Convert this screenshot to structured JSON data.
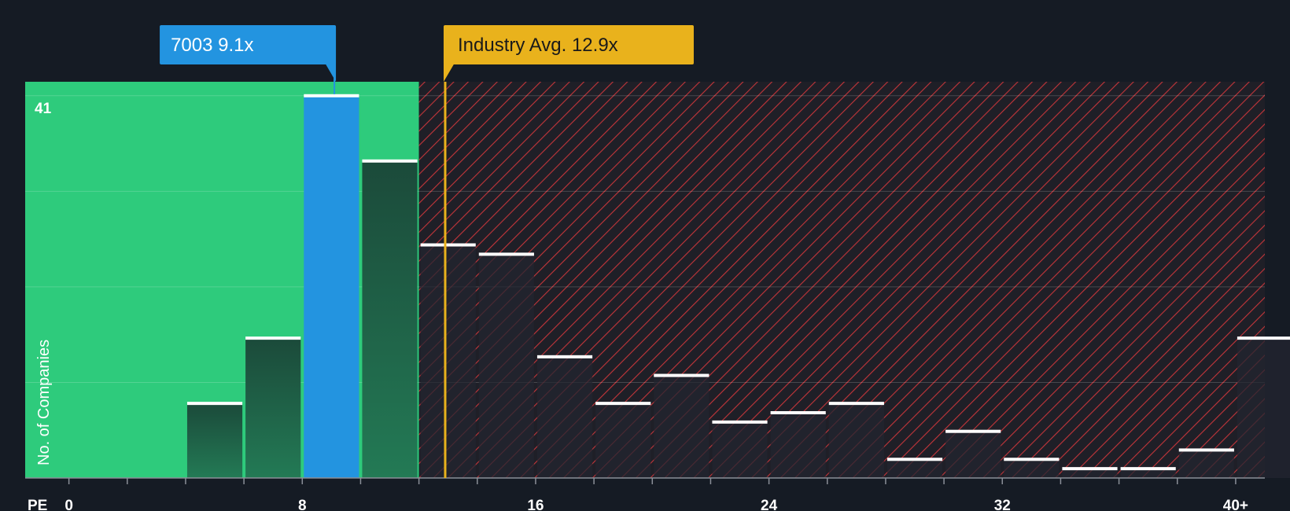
{
  "chart_data": {
    "type": "bar",
    "x_axis_label": "PE",
    "y_axis_label": "No. of Companies",
    "y_max_label": "41",
    "ylim": [
      0,
      42.5
    ],
    "xlim": [
      -1.5,
      41.0
    ],
    "x_ticks": [
      {
        "value": 0,
        "label": "0"
      },
      {
        "value": 8,
        "label": "8"
      },
      {
        "value": 16,
        "label": "16"
      },
      {
        "value": 24,
        "label": "24"
      },
      {
        "value": 32,
        "label": "32"
      },
      {
        "value": 40,
        "label": "40+"
      }
    ],
    "bins": [
      {
        "x0": 4,
        "x1": 6,
        "count": 8
      },
      {
        "x0": 6,
        "x1": 8,
        "count": 15
      },
      {
        "x0": 8,
        "x1": 10,
        "count": 41,
        "highlight": true
      },
      {
        "x0": 10,
        "x1": 12,
        "count": 34
      },
      {
        "x0": 12,
        "x1": 14,
        "count": 25
      },
      {
        "x0": 14,
        "x1": 16,
        "count": 24
      },
      {
        "x0": 16,
        "x1": 18,
        "count": 13
      },
      {
        "x0": 18,
        "x1": 20,
        "count": 8
      },
      {
        "x0": 20,
        "x1": 22,
        "count": 11
      },
      {
        "x0": 22,
        "x1": 24,
        "count": 6
      },
      {
        "x0": 24,
        "x1": 26,
        "count": 7
      },
      {
        "x0": 26,
        "x1": 28,
        "count": 8
      },
      {
        "x0": 28,
        "x1": 30,
        "count": 2
      },
      {
        "x0": 30,
        "x1": 32,
        "count": 5
      },
      {
        "x0": 32,
        "x1": 34,
        "count": 2
      },
      {
        "x0": 34,
        "x1": 36,
        "count": 1
      },
      {
        "x0": 36,
        "x1": 38,
        "count": 1
      },
      {
        "x0": 38,
        "x1": 40,
        "count": 3
      },
      {
        "x0": 40,
        "x1": 42,
        "count": 15
      }
    ],
    "company": {
      "ticker": "7003",
      "pe": 9.1,
      "label": "7003 9.1x",
      "color": "#2394e0"
    },
    "industry": {
      "avg": 12.9,
      "label": "Industry Avg. 12.9x",
      "color": "#e9b21c"
    },
    "colors": {
      "background": "#151b24",
      "good_zone": "#2ecb7c",
      "bad_zone": "#1f1f27",
      "hatch": "#e0393d",
      "bar_green": "#1e5a44",
      "bar_dark": "#232630",
      "bar_cap": "#ffffff"
    }
  }
}
